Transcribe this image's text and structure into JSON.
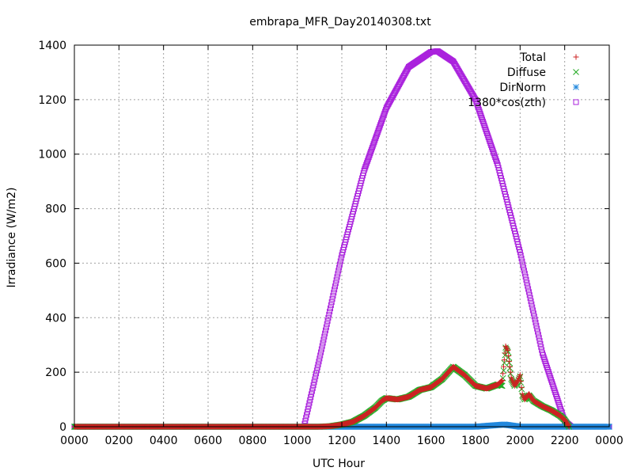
{
  "chart_data": {
    "type": "scatter",
    "title": "embrapa_MFR_Day20140308.txt",
    "xlabel": "UTC Hour",
    "ylabel": "Irradiance (W/m2)",
    "xlim": [
      0,
      24
    ],
    "ylim": [
      0,
      1400
    ],
    "x_ticks": [
      0,
      2,
      4,
      6,
      8,
      10,
      12,
      14,
      16,
      18,
      20,
      22,
      24
    ],
    "x_tick_labels": [
      "0000",
      "0200",
      "0400",
      "0600",
      "0800",
      "1000",
      "1200",
      "1400",
      "1600",
      "1800",
      "2000",
      "2200",
      "0000"
    ],
    "y_ticks": [
      0,
      200,
      400,
      600,
      800,
      1000,
      1200,
      1400
    ],
    "y_tick_labels": [
      "0",
      "200",
      "400",
      "600",
      "800",
      "1000",
      "1200",
      "1400"
    ],
    "grid": true,
    "legend_position": "top-right",
    "series": [
      {
        "name": "Total",
        "marker": "plus",
        "color": "#cc2222",
        "x": [
          0,
          10.2,
          11,
          11.5,
          12,
          12.5,
          13,
          13.5,
          13.8,
          14,
          14.5,
          15,
          15.5,
          16,
          16.5,
          17,
          17.5,
          18,
          18.5,
          19,
          19.2,
          19.35,
          19.45,
          19.6,
          19.75,
          19.9,
          20,
          20.1,
          20.2,
          20.4,
          20.6,
          21,
          21.4,
          21.8,
          22,
          22.2
        ],
        "y": [
          0,
          0,
          0,
          2,
          8,
          18,
          40,
          70,
          95,
          105,
          100,
          110,
          135,
          145,
          175,
          220,
          190,
          150,
          140,
          155,
          170,
          295,
          280,
          180,
          150,
          170,
          190,
          120,
          100,
          120,
          95,
          75,
          60,
          40,
          25,
          0
        ]
      },
      {
        "name": "Diffuse",
        "marker": "cross",
        "color": "#22aa22",
        "x": [
          0,
          10.2,
          11,
          11.5,
          12,
          12.5,
          13,
          13.5,
          13.8,
          14,
          14.5,
          15,
          15.5,
          16,
          16.5,
          17,
          17.5,
          18,
          18.5,
          19,
          19.2,
          19.35,
          19.45,
          19.6,
          19.75,
          19.9,
          20,
          20.1,
          20.2,
          20.4,
          20.6,
          21,
          21.4,
          21.8,
          22,
          22.2
        ],
        "y": [
          0,
          0,
          0,
          2,
          8,
          18,
          40,
          70,
          95,
          105,
          100,
          110,
          135,
          145,
          175,
          220,
          190,
          150,
          140,
          155,
          150,
          290,
          275,
          175,
          150,
          165,
          185,
          115,
          100,
          115,
          95,
          75,
          60,
          40,
          25,
          0
        ]
      },
      {
        "name": "DirNorm",
        "marker": "star",
        "color": "#2288dd",
        "x": [
          0,
          4,
          8,
          10.2,
          12,
          14,
          16,
          18,
          19.3,
          20,
          22,
          24
        ],
        "y": [
          0,
          0,
          0,
          0,
          0,
          0,
          0,
          0,
          8,
          0,
          0,
          0
        ]
      },
      {
        "name": "1380*cos(zth)",
        "marker": "square",
        "color": "#aa22dd",
        "x": [
          0,
          2,
          4,
          6,
          8,
          10,
          10.3,
          11,
          12,
          13,
          14,
          15,
          16,
          16.3,
          17,
          18,
          19,
          20,
          21,
          22,
          22.3,
          23,
          24
        ],
        "y": [
          0,
          0,
          0,
          0,
          0,
          0,
          0,
          250,
          630,
          940,
          1170,
          1320,
          1375,
          1378,
          1340,
          1200,
          960,
          640,
          270,
          20,
          0,
          0,
          0
        ]
      }
    ]
  }
}
